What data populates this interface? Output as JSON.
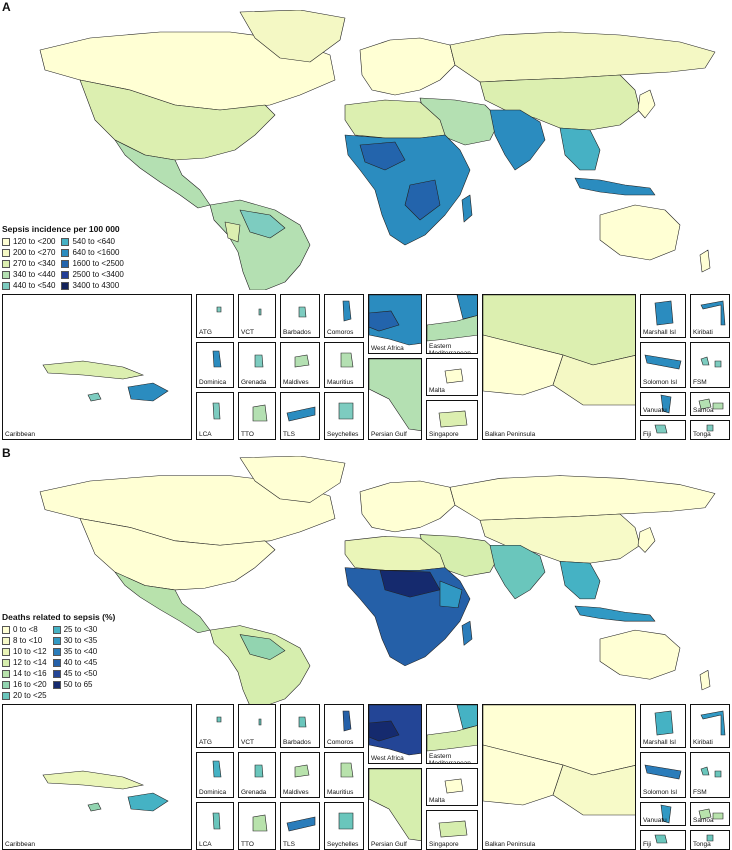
{
  "panels": [
    {
      "letter": "A",
      "legend_title": "Sepsis incidence per 100 000",
      "legend_left": [
        {
          "label": "120 to <200",
          "color": "#ffffd4"
        },
        {
          "label": "200 to <270",
          "color": "#f4f8c4"
        },
        {
          "label": "270 to <340",
          "color": "#dcefb0"
        },
        {
          "label": "340 to <440",
          "color": "#b4e0b2"
        },
        {
          "label": "440 to <540",
          "color": "#7dccc0"
        }
      ],
      "legend_right": [
        {
          "label": "540 to <640",
          "color": "#46b1c4"
        },
        {
          "label": "640 to <1600",
          "color": "#2b8cbf"
        },
        {
          "label": "1600 to <2500",
          "color": "#2364ac"
        },
        {
          "label": "2500 to <3400",
          "color": "#243f96"
        },
        {
          "label": "3400 to 4300",
          "color": "#14245c"
        }
      ],
      "insets": {
        "caribbean": "Caribbean",
        "atg": "ATG",
        "vct": "VCT",
        "barbados": "Barbados",
        "comoros": "Comoros",
        "dominica": "Dominica",
        "grenada": "Grenada",
        "maldives": "Maldives",
        "mauritius": "Mauritius",
        "lca": "LCA",
        "tto": "TTO",
        "tls": "TLS",
        "seychelles": "Seychelles",
        "west_africa": "West Africa",
        "eastern_med": "Eastern Mediterranean",
        "persian_gulf": "Persian Gulf",
        "malta": "Malta",
        "singapore": "Singapore",
        "balkan": "Balkan Peninsula",
        "marshall": "Marshall Isl",
        "kiribati": "Kiribati",
        "solomon": "Solomon Isl",
        "fsm": "FSM",
        "vanuatu": "Vanuatu",
        "samoa": "Samoa",
        "fiji": "Fiji",
        "tonga": "Tonga"
      }
    },
    {
      "letter": "B",
      "legend_title": "Deaths related to sepsis (%)",
      "legend_left": [
        {
          "label": "0 to <8",
          "color": "#ffffd4"
        },
        {
          "label": "8 to <10",
          "color": "#f7fac8"
        },
        {
          "label": "10 to <12",
          "color": "#eaf5b8"
        },
        {
          "label": "12 to <14",
          "color": "#d6eeae"
        },
        {
          "label": "14 to <16",
          "color": "#b8e2ac"
        },
        {
          "label": "16 to <20",
          "color": "#92d4b0"
        },
        {
          "label": "20 to <25",
          "color": "#6ac6bc"
        }
      ],
      "legend_right": [
        {
          "label": "25 to <30",
          "color": "#45b2c4"
        },
        {
          "label": "30 to <35",
          "color": "#3199c4"
        },
        {
          "label": "35 to <40",
          "color": "#2a7cba"
        },
        {
          "label": "40 to <45",
          "color": "#2560a8"
        },
        {
          "label": "45 to <50",
          "color": "#234596"
        },
        {
          "label": "50 to 65",
          "color": "#152a6e"
        }
      ],
      "insets": {
        "caribbean": "Caribbean",
        "atg": "ATG",
        "vct": "VCT",
        "barbados": "Barbados",
        "comoros": "Comoros",
        "dominica": "Dominica",
        "grenada": "Grenada",
        "maldives": "Maldives",
        "mauritius": "Mauritius",
        "lca": "LCA",
        "tto": "TTO",
        "tls": "TLS",
        "seychelles": "Seychelles",
        "west_africa": "West Africa",
        "eastern_med": "Eastern Mediterranean",
        "persian_gulf": "Persian Gulf",
        "malta": "Malta",
        "singapore": "Singapore",
        "balkan": "Balkan Peninsula",
        "marshall": "Marshall Isl",
        "kiribati": "Kiribati",
        "solomon": "Solomon Isl",
        "fsm": "FSM",
        "vanuatu": "Vanuatu",
        "samoa": "Samoa",
        "fiji": "Fiji",
        "tonga": "Tonga"
      }
    }
  ]
}
